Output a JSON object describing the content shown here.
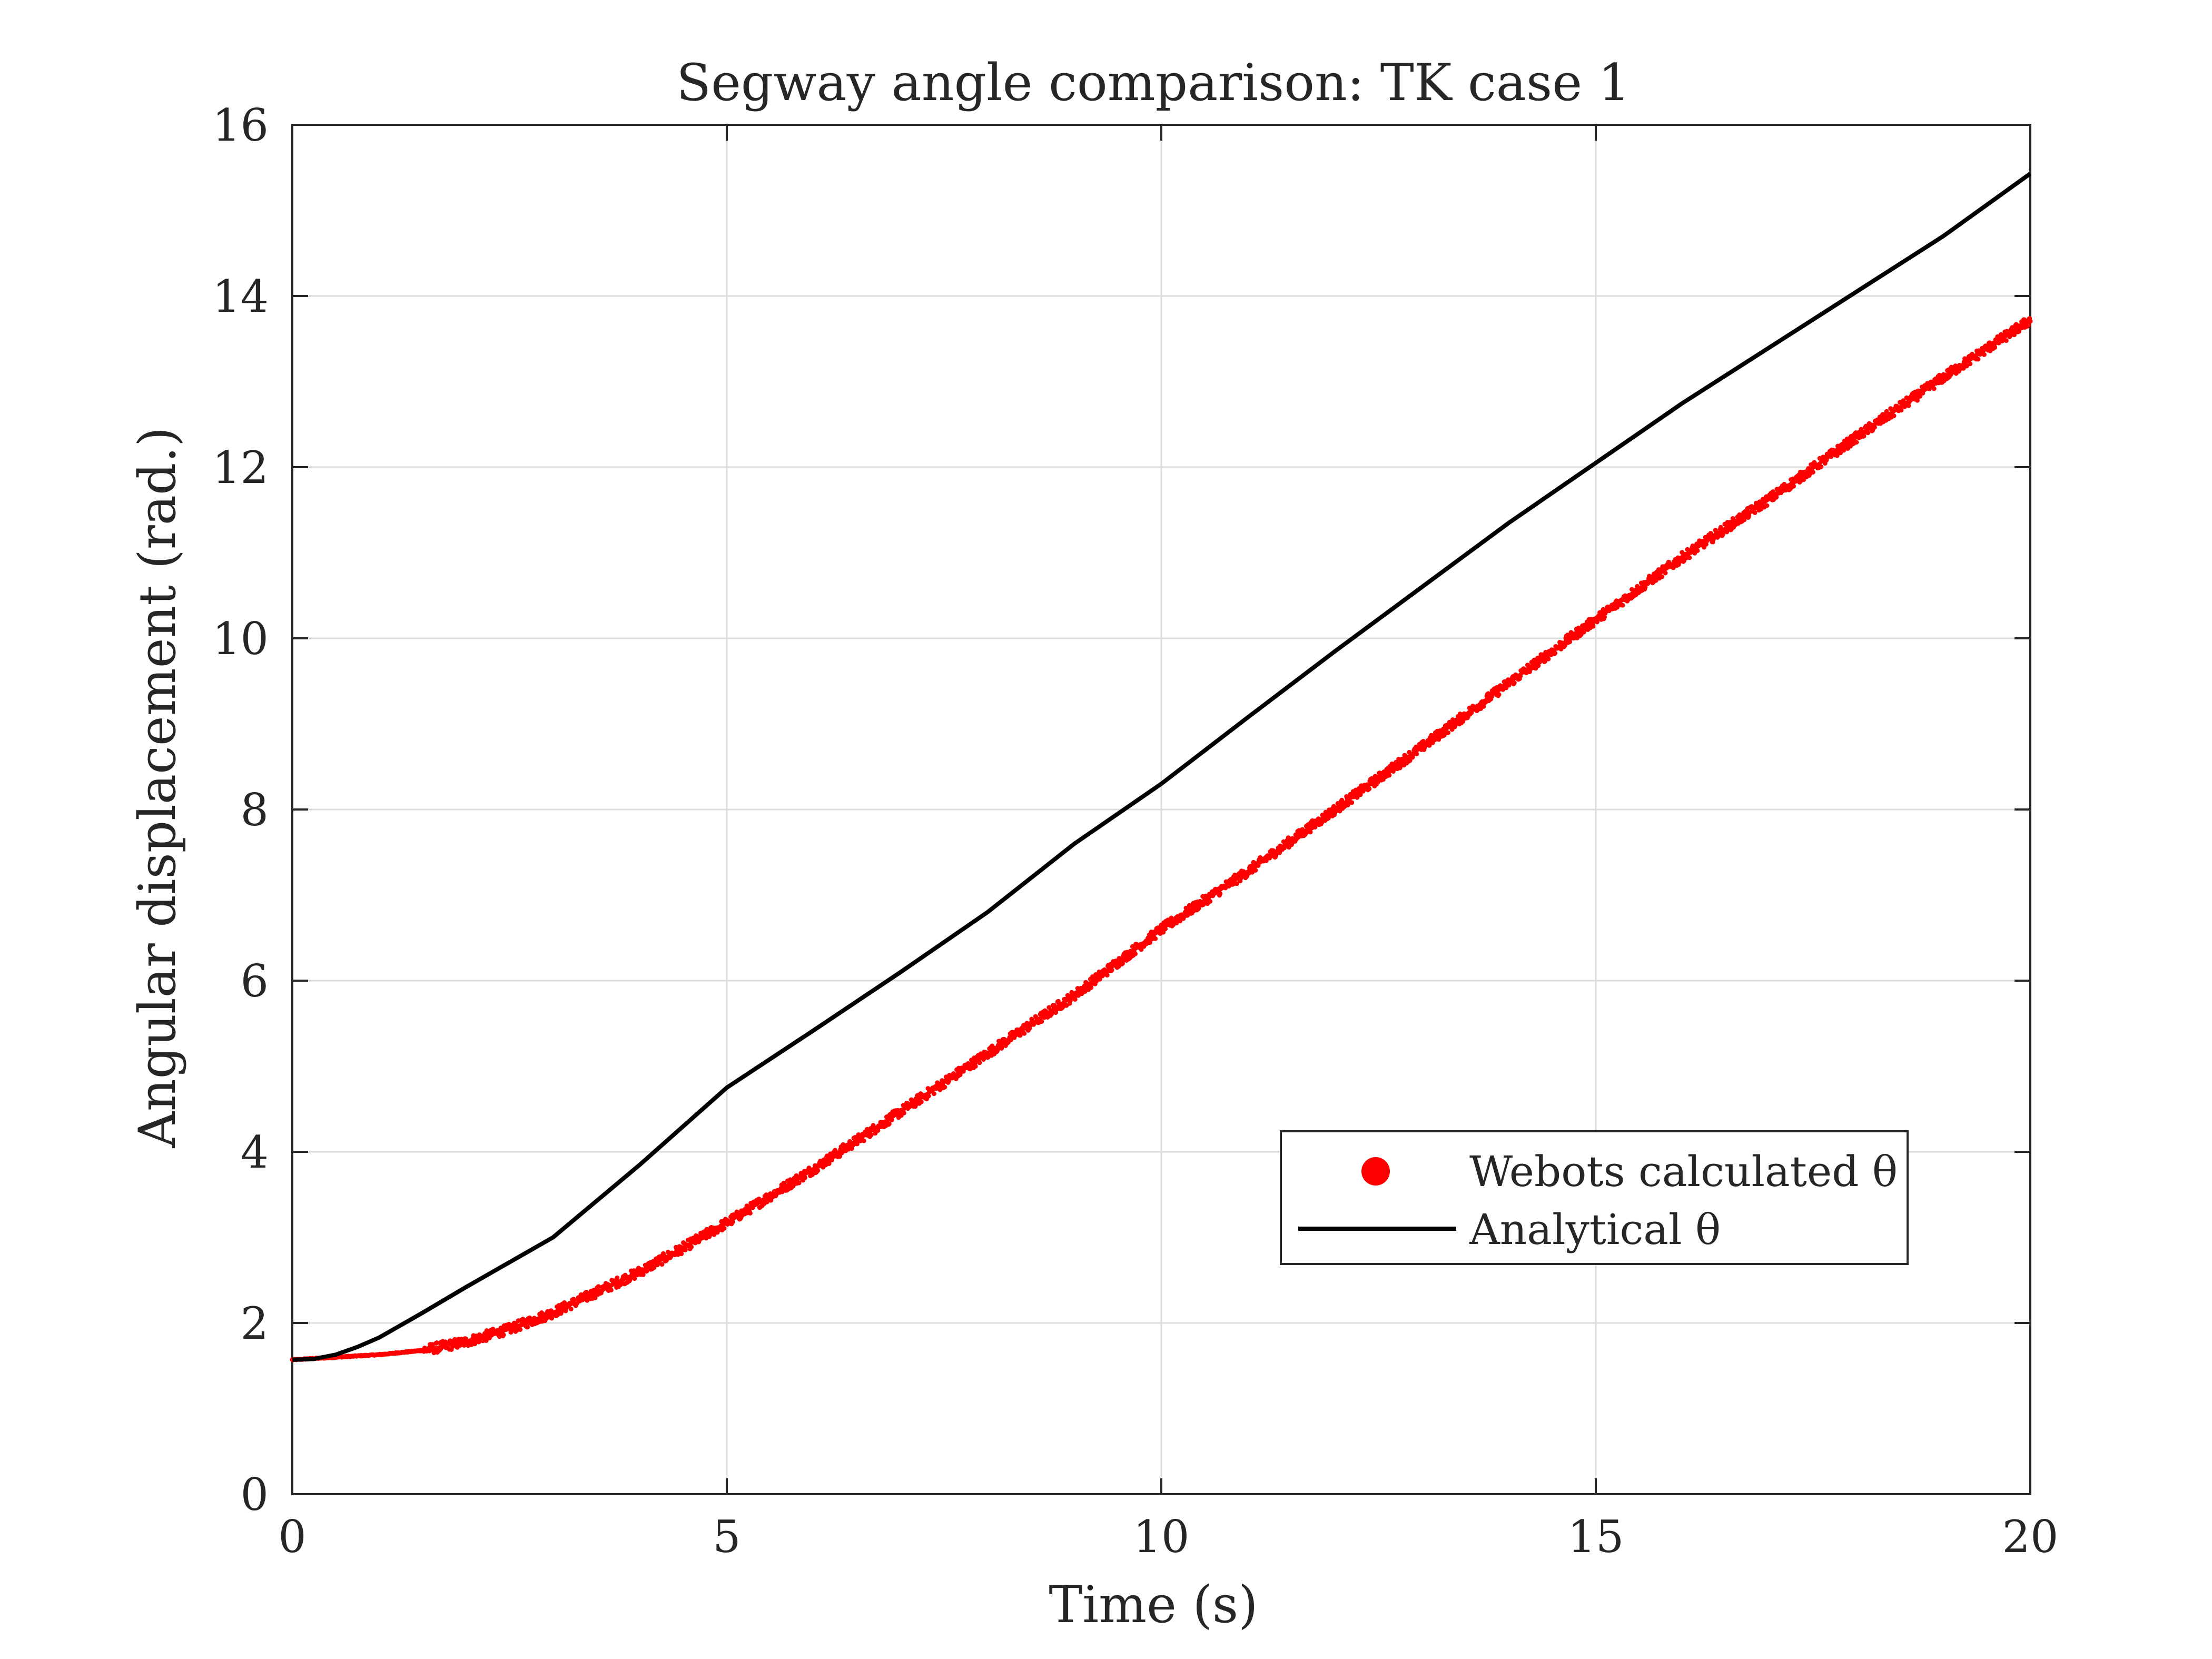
{
  "chart_data": {
    "type": "line",
    "title": "Segway angle comparison: TK case 1",
    "xlabel": "Time (s)",
    "ylabel": "Angular displacement (rad.)",
    "xlim": [
      0,
      20
    ],
    "ylim": [
      0,
      16
    ],
    "xticks": [
      "0",
      "5",
      "10",
      "15",
      "20"
    ],
    "yticks": [
      "0",
      "2",
      "4",
      "6",
      "8",
      "10",
      "12",
      "14",
      "16"
    ],
    "grid": true,
    "legend_position": "lower-right",
    "series": [
      {
        "name": "Webots calculated θ",
        "style": "scatter",
        "color": "#ff0000",
        "x": [
          0,
          0.5,
          1,
          1.5,
          2,
          2.5,
          3,
          3.5,
          4,
          4.5,
          5,
          6,
          7,
          8,
          9,
          10,
          11,
          12,
          13,
          14,
          15,
          16,
          17,
          18,
          19,
          20
        ],
        "y": [
          1.57,
          1.6,
          1.63,
          1.68,
          1.78,
          1.93,
          2.12,
          2.36,
          2.6,
          2.88,
          3.17,
          3.8,
          4.47,
          5.15,
          5.83,
          6.6,
          7.28,
          8.0,
          8.73,
          9.48,
          10.22,
          10.95,
          11.63,
          12.35,
          13.05,
          13.72
        ]
      },
      {
        "name": "Analytical θ",
        "style": "line",
        "color": "#000000",
        "x": [
          0,
          0.25,
          0.5,
          0.75,
          1,
          1.5,
          2,
          3,
          4,
          5,
          6,
          7,
          8,
          9,
          10,
          11,
          12,
          13,
          14,
          15,
          16,
          17,
          18,
          19,
          20
        ],
        "y": [
          1.57,
          1.58,
          1.63,
          1.72,
          1.83,
          2.12,
          2.42,
          3.0,
          3.85,
          4.75,
          5.42,
          6.1,
          6.8,
          7.6,
          8.3,
          9.08,
          9.85,
          10.6,
          11.35,
          12.05,
          12.75,
          13.4,
          14.05,
          14.7,
          15.43
        ]
      }
    ]
  }
}
